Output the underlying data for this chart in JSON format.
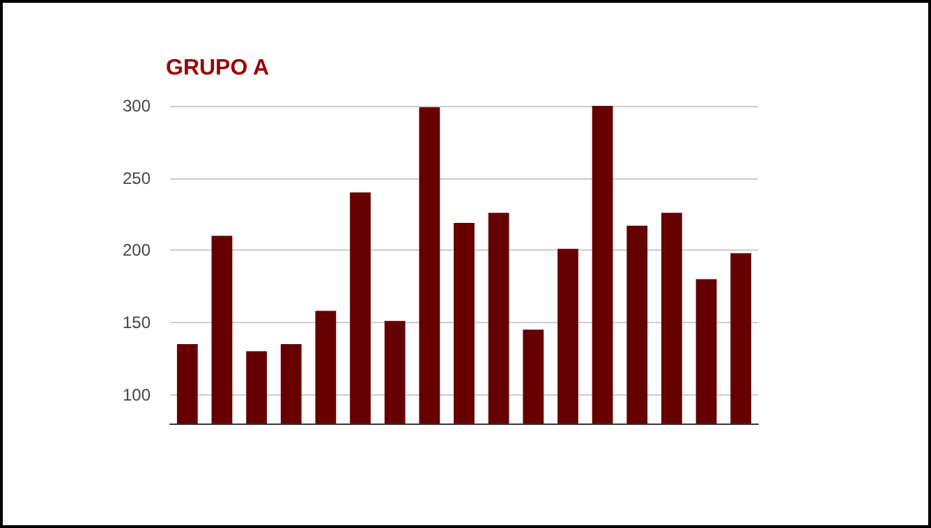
{
  "chart_data": {
    "type": "bar",
    "title": "GRUPO A",
    "categories": [
      null,
      null,
      null,
      null,
      null,
      null,
      null,
      null,
      null,
      null,
      null,
      null,
      null,
      null,
      null,
      null,
      null
    ],
    "values": [
      135,
      210,
      130,
      135,
      158,
      240,
      151,
      299,
      219,
      226,
      145,
      201,
      300,
      217,
      226,
      180,
      198
    ],
    "color": "#660000",
    "ylim": [
      80,
      300
    ],
    "yticks": [
      100,
      150,
      200,
      250,
      300
    ],
    "grid": "y"
  }
}
